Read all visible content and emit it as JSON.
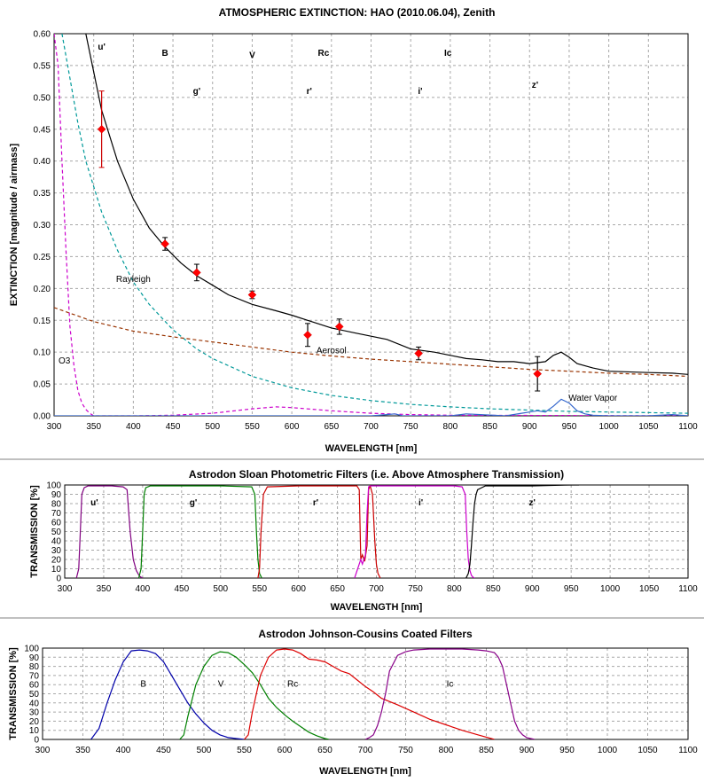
{
  "chart_data": [
    {
      "type": "line",
      "title": "ATMOSPHERIC EXTINCTION: HAO (2010.06.04), Zenith",
      "xlabel": "WAVELENGTH [nm]",
      "ylabel": "EXTINCTION [magnitude / airmass]",
      "xlim": [
        300,
        1100
      ],
      "ylim": [
        0,
        0.6
      ],
      "x_ticks": [
        300,
        350,
        400,
        450,
        500,
        550,
        600,
        650,
        700,
        750,
        800,
        850,
        900,
        950,
        1000,
        1050,
        1100
      ],
      "y_ticks": [
        0.0,
        0.05,
        0.1,
        0.15,
        0.2,
        0.25,
        0.3,
        0.35,
        0.4,
        0.45,
        0.5,
        0.55,
        0.6
      ],
      "grid": true,
      "band_labels": [
        {
          "text": "u'",
          "x": 360,
          "y": 0.575,
          "color": "#cc00cc"
        },
        {
          "text": "B",
          "x": 440,
          "y": 0.565,
          "color": "#0000ff"
        },
        {
          "text": "V",
          "x": 550,
          "y": 0.562,
          "color": "#008000"
        },
        {
          "text": "Rc",
          "x": 640,
          "y": 0.565,
          "color": "#ff0000"
        },
        {
          "text": "Ic",
          "x": 797,
          "y": 0.565,
          "color": "#800080"
        },
        {
          "text": "g'",
          "x": 480,
          "y": 0.505,
          "color": "#008000"
        },
        {
          "text": "r'",
          "x": 622,
          "y": 0.505,
          "color": "#990000"
        },
        {
          "text": "i'",
          "x": 762,
          "y": 0.505,
          "color": "#cc00cc"
        },
        {
          "text": "z'",
          "x": 907,
          "y": 0.515,
          "color": "#990000"
        }
      ],
      "curve_labels": [
        {
          "text": "Rayleigh",
          "x": 400,
          "y": 0.21,
          "color": "#000080"
        },
        {
          "text": "Aerosol",
          "x": 650,
          "y": 0.098,
          "color": "#993300"
        },
        {
          "text": "O3",
          "x": 313,
          "y": 0.082,
          "color": "#cc00cc"
        },
        {
          "text": "Water Vapor",
          "x": 980,
          "y": 0.024,
          "color": "#000080"
        }
      ],
      "series": [
        {
          "color": "#000000",
          "style": "solid",
          "x": [
            340,
            350,
            360,
            380,
            400,
            420,
            440,
            460,
            480,
            500,
            520,
            550,
            580,
            600,
            620,
            650,
            680,
            700,
            720,
            750,
            780,
            800,
            820,
            840,
            860,
            880,
            900,
            920,
            930,
            940,
            950,
            960,
            980,
            1000,
            1050,
            1080,
            1100
          ],
          "y": [
            0.6,
            0.54,
            0.48,
            0.4,
            0.34,
            0.295,
            0.265,
            0.24,
            0.22,
            0.205,
            0.19,
            0.175,
            0.165,
            0.158,
            0.15,
            0.138,
            0.13,
            0.125,
            0.12,
            0.105,
            0.1,
            0.095,
            0.09,
            0.088,
            0.085,
            0.085,
            0.082,
            0.085,
            0.095,
            0.1,
            0.092,
            0.082,
            0.075,
            0.07,
            0.068,
            0.067,
            0.065
          ]
        },
        {
          "color": "#009999",
          "style": "dash",
          "x": [
            310,
            320,
            330,
            340,
            350,
            360,
            380,
            400,
            420,
            450,
            480,
            500,
            550,
            600,
            650,
            700,
            750,
            800,
            850,
            900,
            950,
            1000,
            1050,
            1100
          ],
          "y": [
            0.6,
            0.53,
            0.46,
            0.4,
            0.36,
            0.32,
            0.26,
            0.21,
            0.175,
            0.135,
            0.105,
            0.09,
            0.062,
            0.044,
            0.032,
            0.024,
            0.018,
            0.014,
            0.011,
            0.009,
            0.007,
            0.006,
            0.005,
            0.004
          ]
        },
        {
          "color": "#993300",
          "style": "dash",
          "x": [
            300,
            350,
            400,
            450,
            500,
            550,
            600,
            650,
            700,
            750,
            800,
            850,
            900,
            950,
            1000,
            1050,
            1100
          ],
          "y": [
            0.17,
            0.148,
            0.133,
            0.124,
            0.116,
            0.108,
            0.1,
            0.094,
            0.089,
            0.085,
            0.081,
            0.077,
            0.073,
            0.07,
            0.067,
            0.065,
            0.062
          ]
        },
        {
          "color": "#cc00cc",
          "style": "dash",
          "x": [
            300,
            305,
            310,
            315,
            320,
            325,
            330,
            335,
            340,
            345,
            350,
            400,
            450,
            500,
            550,
            580,
            600,
            650,
            700,
            750,
            800,
            1100
          ],
          "y": [
            0.6,
            0.55,
            0.4,
            0.26,
            0.14,
            0.08,
            0.04,
            0.02,
            0.01,
            0.004,
            0.0,
            0.0,
            0.001,
            0.004,
            0.011,
            0.014,
            0.013,
            0.008,
            0.004,
            0.002,
            0.001,
            0.0
          ]
        },
        {
          "color": "#3366cc",
          "style": "solid",
          "x": [
            300,
            700,
            720,
            730,
            740,
            800,
            820,
            870,
            890,
            900,
            910,
            920,
            930,
            940,
            950,
            960,
            970,
            980,
            1000,
            1050,
            1080,
            1100
          ],
          "y": [
            0.0,
            0.0,
            0.002,
            0.003,
            0.0,
            0.0,
            0.003,
            0.0,
            0.004,
            0.006,
            0.008,
            0.006,
            0.015,
            0.026,
            0.02,
            0.008,
            0.003,
            0.001,
            0.0,
            0.0,
            0.002,
            0.0
          ]
        }
      ],
      "points": {
        "color": "#ff0000",
        "x": [
          360,
          440,
          480,
          550,
          620,
          660,
          760,
          910
        ],
        "y": [
          0.45,
          0.27,
          0.225,
          0.19,
          0.127,
          0.14,
          0.098,
          0.066
        ],
        "err": [
          0.06,
          0.01,
          0.013,
          0.006,
          0.018,
          0.012,
          0.01,
          0.027
        ]
      }
    },
    {
      "type": "line",
      "title": "Astrodon Sloan Photometric Filters (i.e. Above Atmosphere Transmission)",
      "xlabel": "WAVELENGTH [nm]",
      "ylabel": "TRANSMISSION [%]",
      "xlim": [
        300,
        1100
      ],
      "ylim": [
        0,
        100
      ],
      "x_ticks": [
        300,
        350,
        400,
        450,
        500,
        550,
        600,
        650,
        700,
        750,
        800,
        850,
        900,
        950,
        1000,
        1050,
        1100
      ],
      "y_ticks": [
        0,
        10,
        20,
        30,
        40,
        50,
        60,
        70,
        80,
        90,
        100
      ],
      "grid": true,
      "band_labels": [
        {
          "text": "u'",
          "x": 338,
          "y": 78,
          "color": "#990000"
        },
        {
          "text": "g'",
          "x": 465,
          "y": 78,
          "color": "#008000"
        },
        {
          "text": "r'",
          "x": 622,
          "y": 78,
          "color": "#990000"
        },
        {
          "text": "i'",
          "x": 757,
          "y": 78,
          "color": "#cc00cc"
        },
        {
          "text": "z'",
          "x": 900,
          "y": 78,
          "color": "#990000"
        }
      ],
      "series": [
        {
          "color": "#800080",
          "x": [
            315,
            318,
            320,
            322,
            325,
            330,
            340,
            360,
            375,
            380,
            384,
            388,
            392,
            396,
            398,
            400
          ],
          "y": [
            0,
            10,
            50,
            90,
            97,
            99,
            99,
            99,
            98,
            95,
            50,
            20,
            8,
            2,
            1,
            0
          ]
        },
        {
          "color": "#008000",
          "x": [
            395,
            398,
            400,
            402,
            404,
            410,
            450,
            500,
            540,
            544,
            546,
            548,
            550,
            553
          ],
          "y": [
            0,
            10,
            50,
            90,
            97,
            99,
            99,
            99,
            98,
            90,
            50,
            20,
            5,
            0
          ]
        },
        {
          "color": "#cc0000",
          "x": [
            548,
            550,
            552,
            555,
            560,
            600,
            650,
            675,
            678,
            680,
            682,
            685,
            688,
            690,
            692,
            695,
            698,
            700,
            702,
            705
          ],
          "y": [
            0,
            10,
            50,
            90,
            98,
            99,
            99,
            99,
            95,
            20,
            25,
            18,
            35,
            95,
            99,
            90,
            40,
            15,
            5,
            0
          ]
        },
        {
          "color": "#cc00cc",
          "x": [
            672,
            676,
            680,
            682,
            686,
            688,
            690,
            692,
            694,
            700,
            720,
            750,
            800,
            810,
            814,
            816,
            818,
            820,
            822,
            824,
            826
          ],
          "y": [
            0,
            10,
            20,
            15,
            25,
            70,
            98,
            99,
            99,
            99,
            99,
            99,
            99,
            98,
            90,
            50,
            20,
            8,
            3,
            1,
            0
          ]
        },
        {
          "color": "#000000",
          "x": [
            815,
            818,
            820,
            822,
            824,
            826,
            828,
            830,
            835,
            840,
            860,
            900,
            950,
            960
          ],
          "y": [
            0,
            5,
            15,
            35,
            60,
            80,
            90,
            95,
            97,
            99,
            99,
            99,
            100,
            100
          ]
        }
      ]
    },
    {
      "type": "line",
      "title": "Astrodon Johnson-Cousins Coated Filters",
      "xlabel": "WAVELENGTH [nm]",
      "ylabel": "TRANSMISSION [%]",
      "xlim": [
        300,
        1100
      ],
      "ylim": [
        0,
        100
      ],
      "x_ticks": [
        300,
        350,
        400,
        450,
        500,
        550,
        600,
        650,
        700,
        750,
        800,
        850,
        900,
        950,
        1000,
        1050,
        1100
      ],
      "y_ticks": [
        0,
        10,
        20,
        30,
        40,
        50,
        60,
        70,
        80,
        90,
        100
      ],
      "grid": true,
      "band_labels": [
        {
          "text": "B",
          "x": 425,
          "y": 58,
          "color": "#000080"
        },
        {
          "text": "V",
          "x": 521,
          "y": 58,
          "color": "#008000"
        },
        {
          "text": "Rc",
          "x": 610,
          "y": 58,
          "color": "#cc0000"
        },
        {
          "text": "Ic",
          "x": 805,
          "y": 58,
          "color": "#800080"
        }
      ],
      "series": [
        {
          "color": "#0000aa",
          "x": [
            360,
            370,
            380,
            390,
            400,
            410,
            420,
            430,
            440,
            450,
            460,
            470,
            480,
            490,
            500,
            510,
            520,
            530,
            540,
            550
          ],
          "y": [
            0,
            12,
            40,
            65,
            85,
            97,
            98,
            97,
            94,
            85,
            70,
            55,
            40,
            28,
            18,
            10,
            5,
            2,
            1,
            0
          ]
        },
        {
          "color": "#008000",
          "x": [
            470,
            475,
            480,
            490,
            500,
            510,
            520,
            530,
            540,
            550,
            560,
            570,
            580,
            590,
            600,
            610,
            620,
            630,
            640,
            650,
            655
          ],
          "y": [
            0,
            5,
            25,
            60,
            80,
            92,
            96,
            95,
            90,
            82,
            73,
            60,
            45,
            35,
            27,
            20,
            14,
            8,
            4,
            1,
            0
          ]
        },
        {
          "color": "#dd0000",
          "x": [
            550,
            555,
            560,
            570,
            580,
            590,
            600,
            610,
            620,
            630,
            640,
            650,
            660,
            670,
            680,
            690,
            700,
            710,
            720,
            740,
            760,
            780,
            800,
            820,
            840,
            860
          ],
          "y": [
            0,
            5,
            30,
            70,
            90,
            98,
            99,
            98,
            94,
            88,
            87,
            85,
            80,
            75,
            72,
            65,
            58,
            52,
            45,
            38,
            30,
            22,
            16,
            10,
            5,
            0
          ]
        },
        {
          "color": "#880088",
          "x": [
            700,
            705,
            710,
            715,
            720,
            725,
            730,
            740,
            750,
            760,
            780,
            800,
            820,
            840,
            850,
            860,
            865,
            870,
            875,
            880,
            885,
            890,
            895,
            900,
            905,
            910
          ],
          "y": [
            0,
            2,
            5,
            15,
            30,
            50,
            75,
            92,
            96,
            98,
            99,
            99,
            99,
            98,
            97,
            95,
            90,
            80,
            60,
            40,
            20,
            10,
            5,
            2,
            1,
            0
          ]
        }
      ]
    }
  ]
}
